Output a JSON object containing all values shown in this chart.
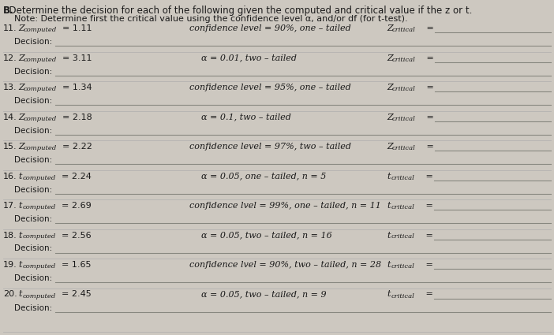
{
  "bg_color": "#cdc8c0",
  "header_b": "B.",
  "header_text": "  Determine the decision for each of the following given the computed and critical value if the z or t.",
  "note": "    Note: Determine first the critical value using the confidence level α, and/or df (for t-test).",
  "rows": [
    {
      "num": "11.",
      "var": "Z",
      "val": "= 1.11",
      "mid_text": "confidence level = 90%, one – tailed",
      "mid_italic": true,
      "rvar": "Z",
      "rsub": "critical"
    },
    {
      "num": "12.",
      "var": "Z",
      "val": "= 3.11",
      "mid_text": "α = 0.01, two – tailed",
      "mid_italic": true,
      "rvar": "Z",
      "rsub": "critical"
    },
    {
      "num": "13.",
      "var": "Z",
      "val": "= 1.34",
      "mid_text": "confidence level = 95%, one – tailed",
      "mid_italic": true,
      "rvar": "Z",
      "rsub": "critical"
    },
    {
      "num": "14.",
      "var": "Z",
      "val": "= 2.18",
      "mid_text": "α = 0.1, two – tailed",
      "mid_italic": true,
      "rvar": "Z",
      "rsub": "critical",
      "rvar_style": "alt"
    },
    {
      "num": "15.",
      "var": "Z",
      "val": "= 2.22",
      "mid_text": "confidence level = 97%, two – tailed",
      "mid_italic": true,
      "rvar": "Z",
      "rsub": "critical"
    },
    {
      "num": "16.",
      "var": "t",
      "val": "= 2.24",
      "mid_text": "α = 0.05, one – tailed, n = 5",
      "mid_italic": true,
      "rvar": "t",
      "rsub": "critical"
    },
    {
      "num": "17.",
      "var": "t",
      "val": "= 2.69",
      "mid_text": "confidence lvel = 99%, one – tailed, n = 11",
      "mid_italic": true,
      "rvar": "t",
      "rsub": "critical"
    },
    {
      "num": "18.",
      "var": "t",
      "val": "= 2.56",
      "mid_text": "α = 0.05, two – tailed, n = 16",
      "mid_italic": true,
      "rvar": "t",
      "rsub": "critical"
    },
    {
      "num": "19.",
      "var": "t",
      "val": "= 1.65",
      "mid_text": "confidence lvel = 90%, two – tailed, n = 28",
      "mid_italic": true,
      "rvar": "t",
      "rsub": "critical",
      "rvar_style": "alt19"
    },
    {
      "num": "20.",
      "var": "t",
      "val": "= 2.45",
      "mid_text": "α = 0.05, two – tailed, n = 9",
      "mid_italic": true,
      "rvar": "t",
      "rsub": "critical"
    }
  ],
  "decision_label": "Decision:",
  "text_color": "#1a1a1a",
  "line_color": "#888880",
  "sep_color": "#aaaaaa"
}
